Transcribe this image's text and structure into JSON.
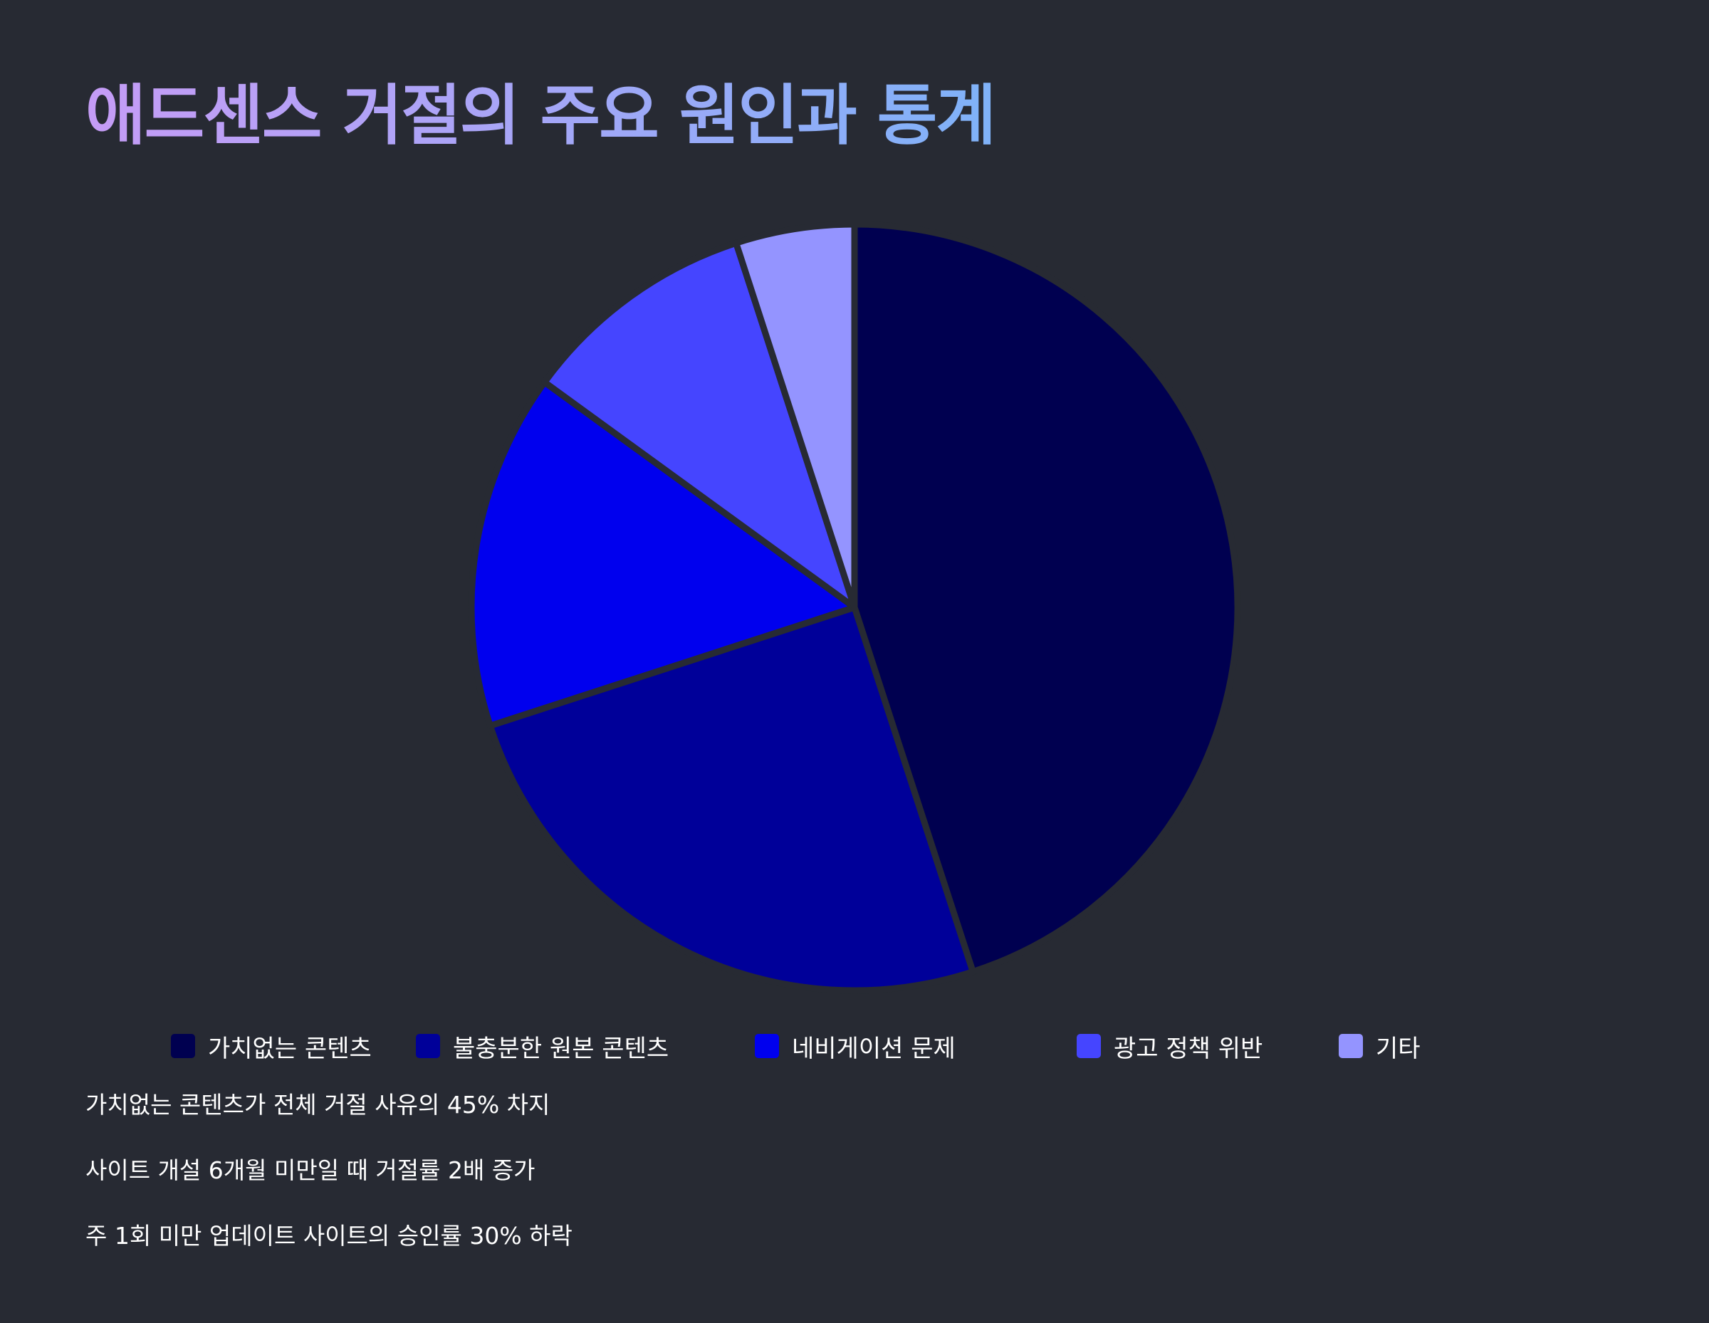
{
  "title": "애드센스 거절의 주요 원인과 통계",
  "chart_data": {
    "type": "pie",
    "categories": [
      "가치없는 콘텐츠",
      "불충분한 원본 콘텐츠",
      "네비게이션 문제",
      "광고 정책 위반",
      "기타"
    ],
    "values": [
      45,
      25,
      15,
      10,
      5
    ],
    "colors": [
      "#000050",
      "#000099",
      "#0000ee",
      "#4545ff",
      "#9494ff"
    ],
    "start_angle_deg": 0,
    "direction": "clockwise",
    "legend_position": "bottom",
    "slice_border_color": "#272a33"
  },
  "stats": [
    "가치없는 콘텐츠가 전체 거절 사유의 45% 차지",
    "사이트 개설 6개월 미만일 때 거절률 2배 증가",
    "주 1회 미만 업데이트 사이트의 승인률 30% 하락"
  ]
}
